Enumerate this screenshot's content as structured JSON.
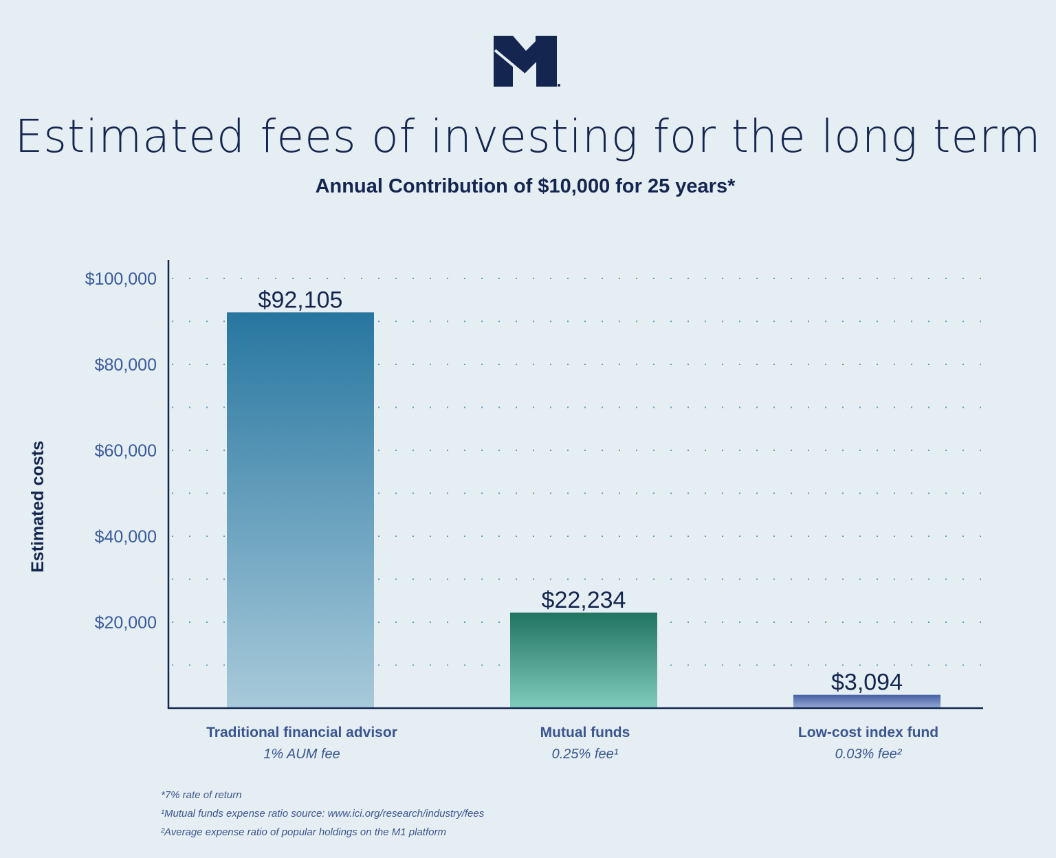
{
  "logo": {
    "text": "M1",
    "color": "#14254f"
  },
  "title": "Estimated fees of investing for the long term",
  "subtitle": "Annual Contribution of $10,000 for 25 years*",
  "chart_data": {
    "type": "bar",
    "title": "Estimated fees of investing for the long term",
    "subtitle": "Annual Contribution of $10,000 for 25 years*",
    "ylabel": "Estimated costs",
    "xlabel": "",
    "ylim": [
      0,
      100000
    ],
    "yticks": [
      20000,
      40000,
      60000,
      80000,
      100000
    ],
    "ytick_labels": [
      "$20,000",
      "$40,000",
      "$60,000",
      "$80,000",
      "$100,000"
    ],
    "grid": "dotted horizontal every 10,000",
    "categories": [
      "Traditional financial advisor",
      "Mutual funds",
      "Low-cost index fund"
    ],
    "sublabels": [
      "1% AUM fee",
      "0.25% fee¹",
      "0.03% fee²"
    ],
    "values": [
      92105,
      22234,
      3094
    ],
    "data_labels": [
      "$92,105",
      "$22,234",
      "$3,094"
    ],
    "colors": [
      [
        "#2776a0",
        "#a8cada"
      ],
      [
        "#217460",
        "#80ccbb"
      ],
      [
        "#4660a3",
        "#97a9d6"
      ]
    ]
  },
  "footnotes": [
    "*7% rate of return",
    "¹Mutual funds expense ratio source: www.ici.org/research/industry/fees",
    "²Average expense ratio of popular holdings on the M1 platform"
  ]
}
